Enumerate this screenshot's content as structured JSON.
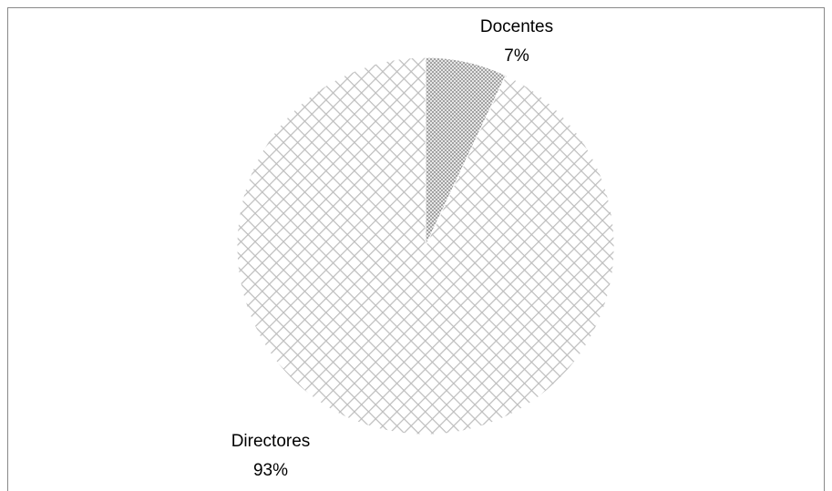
{
  "chart_data": {
    "type": "pie",
    "categories": [
      "Docentes",
      "Directores"
    ],
    "values": [
      7,
      93
    ],
    "value_labels": [
      "7%",
      "93%"
    ],
    "colors": [
      "#8c8c8c",
      "#bdbdbd"
    ]
  }
}
